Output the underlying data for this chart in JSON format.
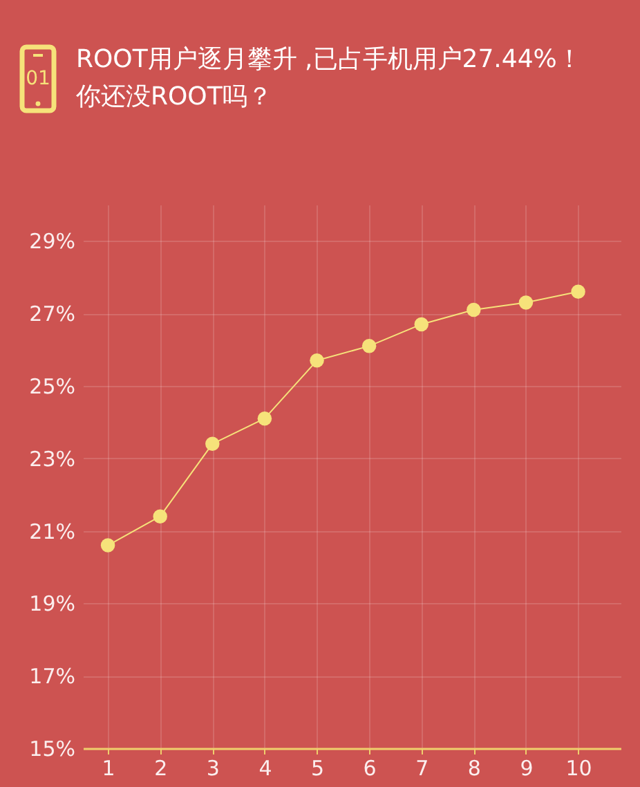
{
  "chart_data": {
    "type": "line",
    "title": "ROOT用户逐月攀升 ,已占手机用户27.44%！你还没ROOT吗？",
    "annotations": [
      "01"
    ],
    "categories": [
      "1",
      "2",
      "3",
      "4",
      "5",
      "6",
      "7",
      "8",
      "9",
      "10"
    ],
    "series": [
      {
        "color": "#f6e27a",
        "values": [
          20.6,
          21.4,
          23.4,
          24.1,
          25.7,
          26.1,
          26.7,
          27.1,
          27.3,
          27.6
        ]
      }
    ],
    "ylim": [
      15,
      30
    ],
    "yticks": [
      {
        "value": 15,
        "label": "15%"
      },
      {
        "value": 17,
        "label": "17%"
      },
      {
        "value": 19,
        "label": "19%"
      },
      {
        "value": 21,
        "label": "21%"
      },
      {
        "value": 23,
        "label": "23%"
      },
      {
        "value": 25,
        "label": "25%"
      },
      {
        "value": 27,
        "label": "27%"
      },
      {
        "value": 29,
        "label": "29%"
      }
    ],
    "grid": true,
    "marker": "circle",
    "line_style": "solid"
  }
}
